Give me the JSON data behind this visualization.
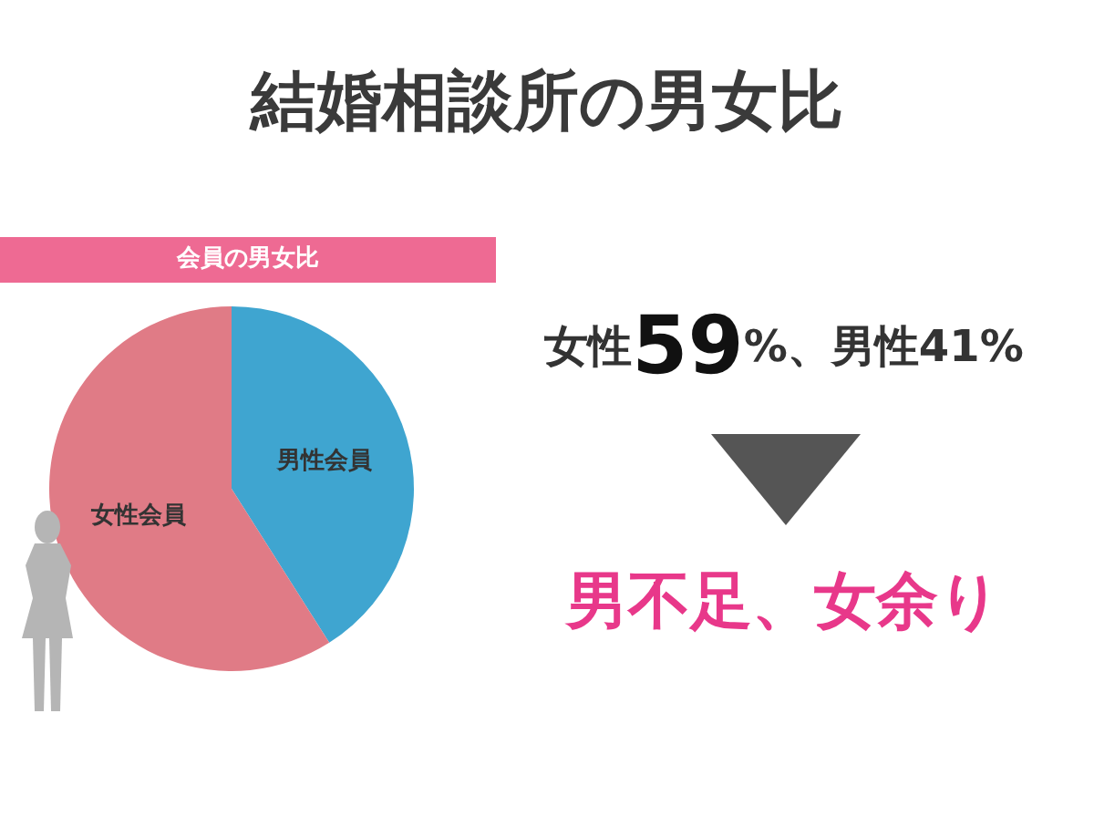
{
  "chart_data": {
    "type": "pie",
    "title": "結婚相談所の男女比",
    "subtitle": "会員の男女比",
    "categories": [
      "男性会員",
      "女性会員"
    ],
    "values": [
      41,
      59
    ],
    "colors": [
      "#3fa5d0",
      "#e07b86"
    ],
    "annotations": [
      "女性59%、男性41%",
      "男不足、女余り"
    ]
  }
}
